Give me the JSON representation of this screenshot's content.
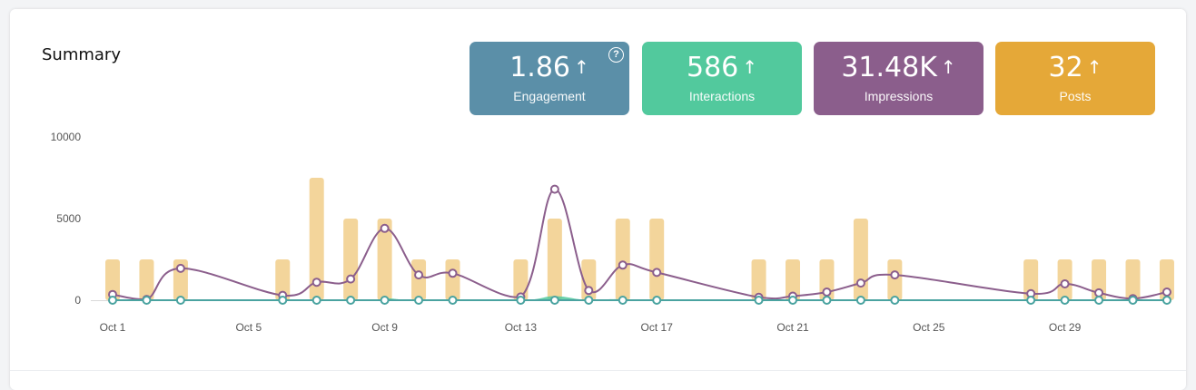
{
  "summary": {
    "title": "Summary",
    "help_glyph": "?",
    "stats": [
      {
        "value": "1.86",
        "label": "Engagement",
        "color": "#5b8fa8"
      },
      {
        "value": "586",
        "label": "Interactions",
        "color": "#52c99d"
      },
      {
        "value": "31.48K",
        "label": "Impressions",
        "color": "#8b5e8c"
      },
      {
        "value": "32",
        "label": "Posts",
        "color": "#e5a838"
      }
    ],
    "arrow_glyph": "↑"
  },
  "chart_data": {
    "type": "bar",
    "ylim": [
      0,
      10000
    ],
    "y_ticks": [
      "10000",
      "5000",
      "0"
    ],
    "y_tick_values": [
      10000,
      5000,
      0
    ],
    "x_tick_labels": [
      "Oct 1",
      "Oct 5",
      "Oct 9",
      "Oct 13",
      "Oct 17",
      "Oct 21",
      "Oct 25",
      "Oct 29"
    ],
    "x_tick_days": [
      1,
      5,
      9,
      13,
      17,
      21,
      25,
      29
    ],
    "bars": {
      "color": "#f3d59b",
      "days": [
        1,
        2,
        3,
        6,
        7,
        8,
        9,
        10,
        11,
        13,
        14,
        15,
        16,
        17,
        20,
        21,
        22,
        23,
        24,
        28,
        29,
        30,
        31,
        32
      ],
      "values": [
        2500,
        2500,
        2500,
        2500,
        7500,
        5000,
        5000,
        2500,
        2500,
        2500,
        5000,
        2500,
        5000,
        5000,
        2500,
        2500,
        2500,
        5000,
        2500,
        2500,
        2500,
        2500,
        2500,
        2500
      ]
    },
    "line_series": [
      {
        "color": "#8b5e8c",
        "days": [
          1,
          2,
          3,
          6,
          7,
          8,
          9,
          10,
          11,
          13,
          14,
          15,
          16,
          17,
          20,
          21,
          22,
          23,
          24,
          28,
          29,
          30,
          31,
          32
        ],
        "values": [
          350,
          50,
          1950,
          300,
          1100,
          1300,
          4400,
          1550,
          1650,
          200,
          6800,
          600,
          2150,
          1700,
          180,
          250,
          500,
          1050,
          1550,
          400,
          1000,
          450,
          100,
          500
        ]
      },
      {
        "color": "#4aa3a0",
        "days": [
          1,
          2,
          3,
          6,
          7,
          8,
          9,
          10,
          11,
          13,
          14,
          15,
          16,
          17,
          20,
          21,
          22,
          23,
          24,
          28,
          29,
          30,
          31,
          32
        ],
        "values": [
          0,
          0,
          0,
          0,
          0,
          0,
          0,
          0,
          0,
          0,
          0,
          0,
          0,
          0,
          0,
          0,
          0,
          0,
          0,
          0,
          0,
          0,
          0,
          0
        ]
      }
    ],
    "area": {
      "color": "#52c99d",
      "days": [
        1,
        8,
        9,
        10,
        13,
        14,
        15,
        16,
        17,
        32
      ],
      "values": [
        0,
        0,
        120,
        0,
        0,
        250,
        0,
        120,
        0,
        0
      ]
    }
  }
}
